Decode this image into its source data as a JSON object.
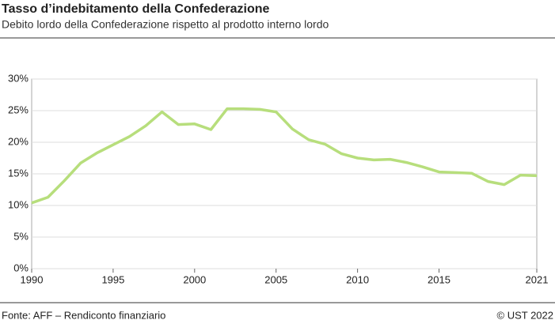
{
  "chart_data": {
    "type": "line",
    "title": "Tasso d’indebitamento della Confederazione",
    "subtitle": "Debito lordo della Confederazione rispetto al prodotto interno lordo",
    "source": "Fonte: AFF – Rendiconto finanziario",
    "copyright": "© UST 2022",
    "x": [
      1990,
      1991,
      1992,
      1993,
      1994,
      1995,
      1996,
      1997,
      1998,
      1999,
      2000,
      2001,
      2002,
      2003,
      2004,
      2005,
      2006,
      2007,
      2008,
      2009,
      2010,
      2011,
      2012,
      2013,
      2014,
      2015,
      2016,
      2017,
      2018,
      2019,
      2020,
      2021
    ],
    "series": [
      {
        "color": "#b7de7c",
        "values": [
          10.4,
          11.3,
          13.9,
          16.7,
          18.3,
          19.6,
          20.9,
          22.6,
          24.8,
          22.8,
          22.9,
          22.0,
          25.3,
          25.3,
          25.2,
          24.8,
          22.1,
          20.4,
          19.7,
          18.2,
          17.5,
          17.2,
          17.3,
          16.8,
          16.1,
          15.3,
          15.2,
          15.1,
          13.8,
          13.3,
          14.8,
          14.7
        ]
      }
    ],
    "xlim": [
      1990,
      2021
    ],
    "xticks": [
      1990,
      1995,
      2000,
      2005,
      2010,
      2015,
      2021
    ],
    "ylim": [
      0,
      30
    ],
    "yticks": [
      {
        "value": 0,
        "label": "0%"
      },
      {
        "value": 5,
        "label": "5%"
      },
      {
        "value": 10,
        "label": "10%"
      },
      {
        "value": 15,
        "label": "15%"
      },
      {
        "value": 20,
        "label": "20%"
      },
      {
        "value": 25,
        "label": "25%"
      },
      {
        "value": 30,
        "label": "30%"
      }
    ],
    "grid": true
  }
}
